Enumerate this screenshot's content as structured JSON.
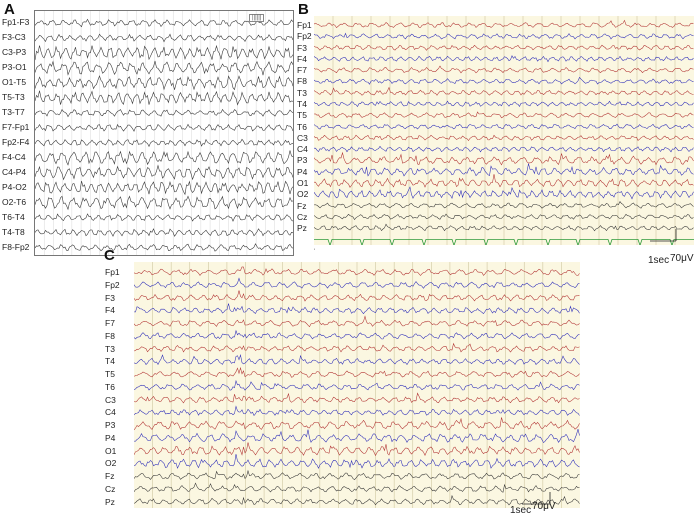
{
  "panels": [
    {
      "id": "A",
      "letter": "A",
      "style": "bw",
      "tag": "||||||",
      "channels": [
        "Fp1-F3",
        "F3-C3",
        "C3-P3",
        "P3-O1",
        "O1-T5",
        "T5-T3",
        "T3-T7",
        "F7-Fp1",
        "Fp2-F4",
        "F4-C4",
        "C4-P4",
        "P4-O2",
        "O2-T6",
        "T6-T4",
        "T4-T8",
        "F8-Fp2"
      ],
      "trace_color": "#3a3a3a"
    },
    {
      "id": "B",
      "letter": "B",
      "style": "color",
      "channels": [
        "Fp1",
        "Fp2",
        "F3",
        "F4",
        "F7",
        "F8",
        "T3",
        "T4",
        "T5",
        "T6",
        "C3",
        "C4",
        "P3",
        "P4",
        "O1",
        "O2",
        "Fz",
        "Cz",
        "Pz"
      ],
      "scale": {
        "time": "1sec",
        "amplitude": "70μV"
      },
      "ekg_color": "#2e9a3a"
    },
    {
      "id": "C",
      "letter": "C",
      "style": "color",
      "channels": [
        "Fp1",
        "Fp2",
        "F3",
        "F4",
        "F7",
        "F8",
        "T3",
        "T4",
        "T5",
        "T6",
        "C3",
        "C4",
        "P3",
        "P4",
        "O1",
        "O2",
        "Fz",
        "Cz",
        "Pz"
      ],
      "scale": {
        "time": "1sec",
        "amplitude": "70μV"
      }
    }
  ],
  "colors": {
    "left": "#b03030",
    "right": "#2a2ab8",
    "midline": "#333333",
    "grid": "#cfc7a0",
    "background": "#fbf7e1"
  }
}
